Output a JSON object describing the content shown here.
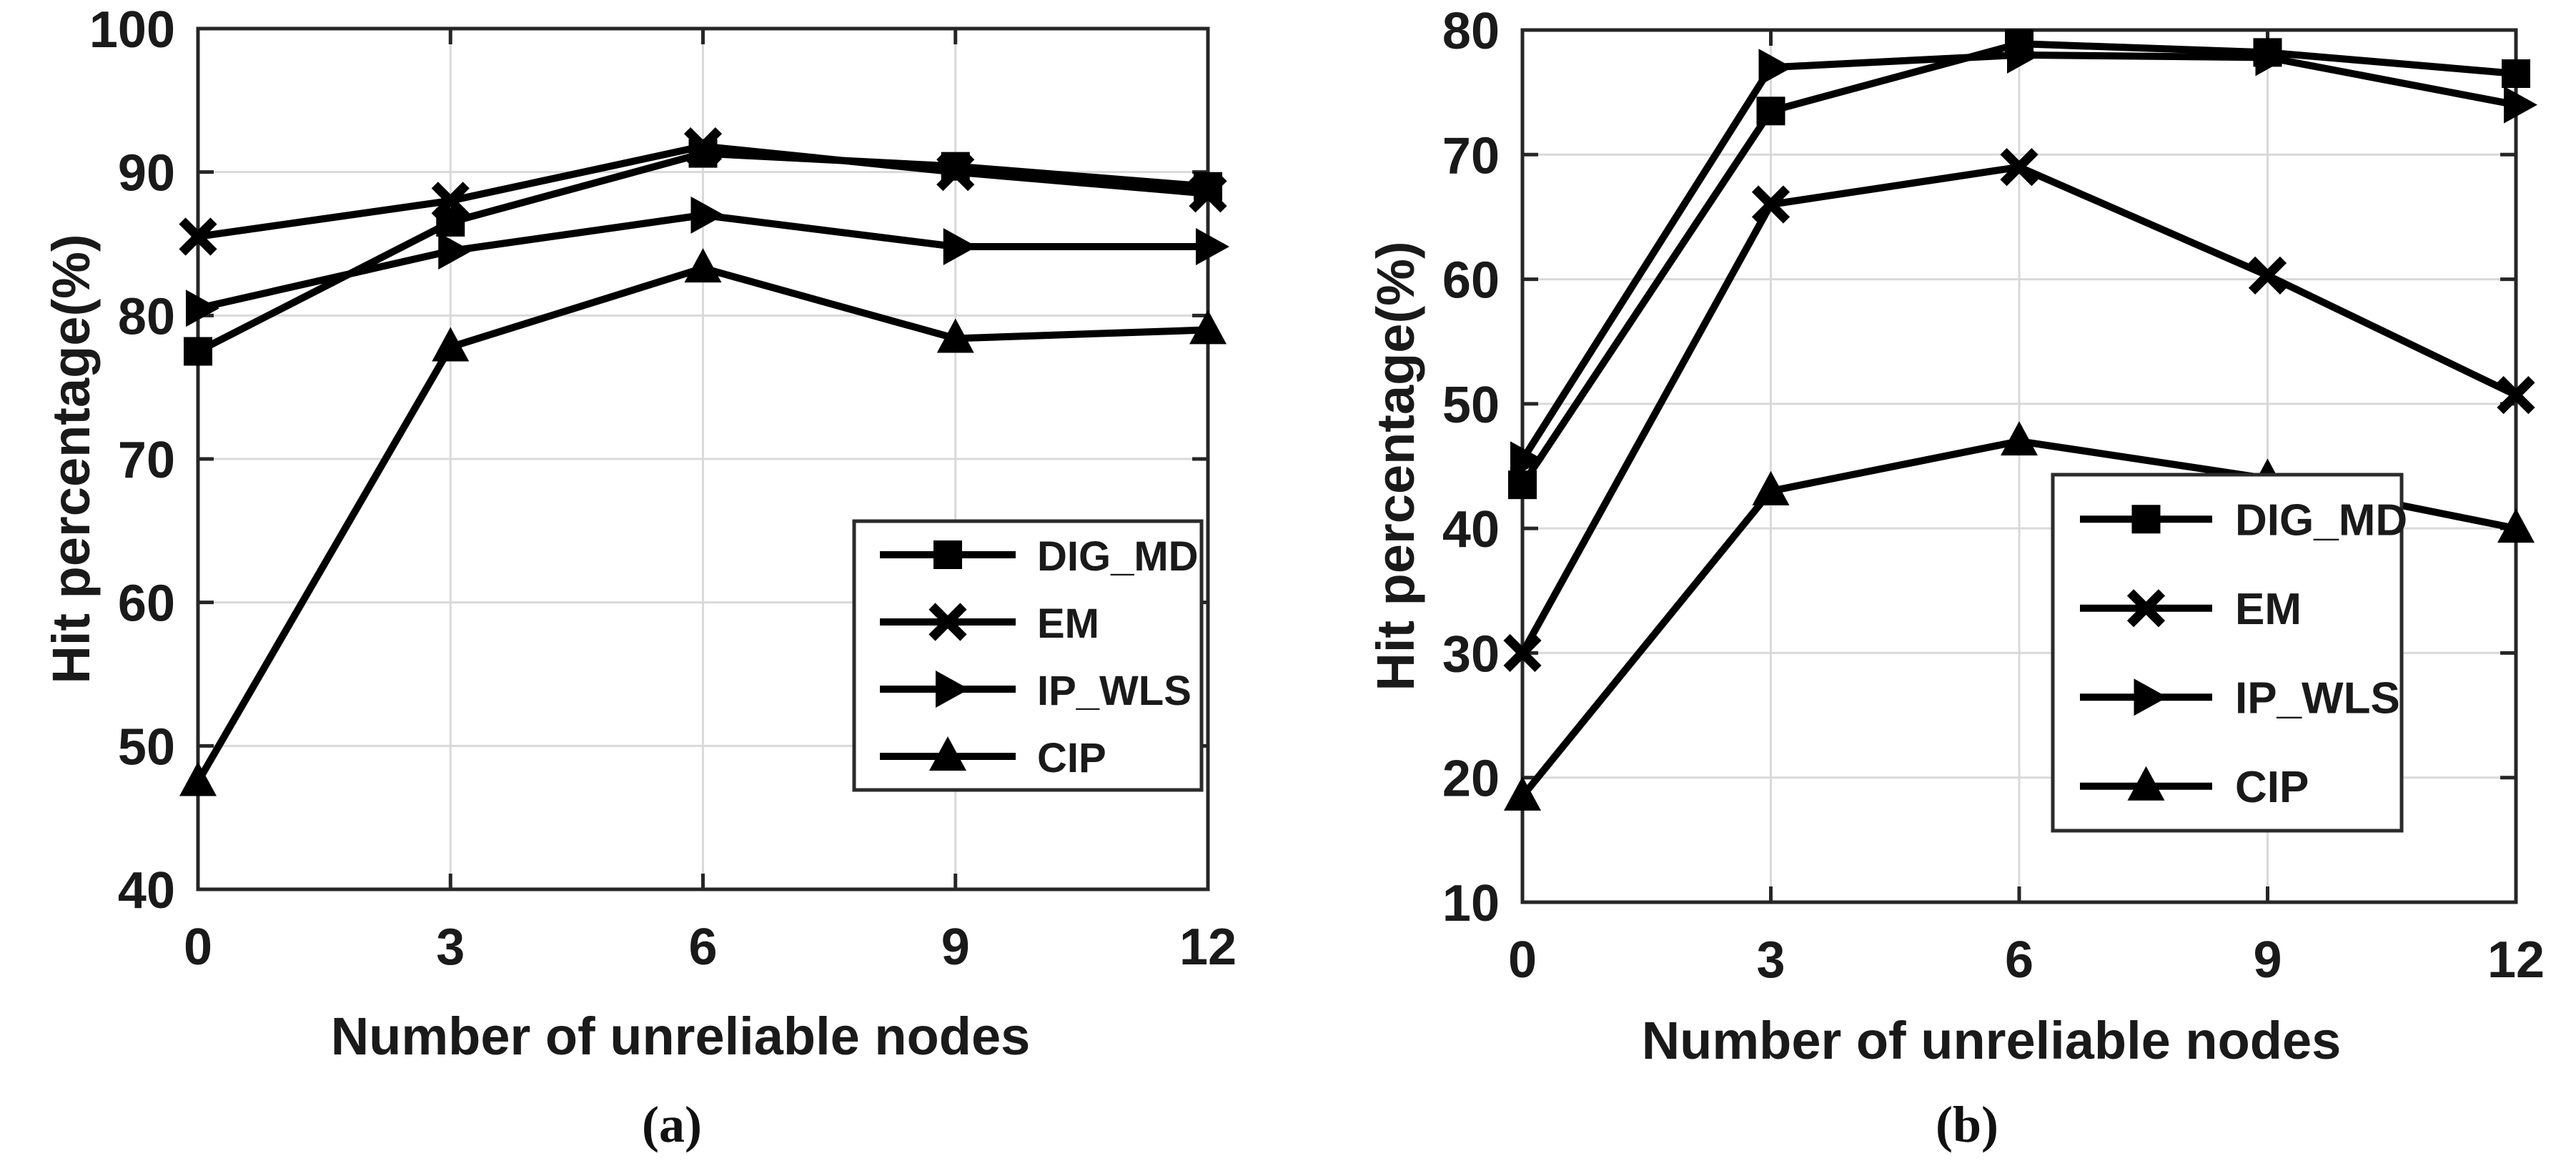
{
  "figure": {
    "background": "#ffffff",
    "line_color": "#000000",
    "axis_color": "#262626",
    "grid_color": "#d9d9d9",
    "text_color": "#1a1a1a"
  },
  "chart_data": [
    {
      "type": "line",
      "caption": "(a)",
      "xlabel": "Number of unreliable nodes",
      "ylabel": "Hit percentage(%)",
      "x": [
        0,
        3,
        6,
        9,
        12
      ],
      "xticks": [
        0,
        3,
        6,
        9,
        12
      ],
      "xlim": [
        0,
        12
      ],
      "ylim": [
        40,
        100
      ],
      "yticks": [
        40,
        50,
        60,
        70,
        80,
        90,
        100
      ],
      "grid": true,
      "legend_position": "inside-center-right",
      "series": [
        {
          "name": "DIG_MD",
          "marker": "square-marker",
          "values": [
            77.5,
            86.5,
            91.3,
            90.4,
            89.0
          ]
        },
        {
          "name": "EM",
          "marker": "x-marker",
          "values": [
            85.5,
            88.0,
            91.8,
            90.0,
            88.5
          ]
        },
        {
          "name": "IP_WLS",
          "marker": "triangle-right-marker",
          "values": [
            80.5,
            84.5,
            87.0,
            84.8,
            84.8
          ]
        },
        {
          "name": "CIP",
          "marker": "triangle-up-marker",
          "values": [
            47.5,
            77.8,
            83.3,
            78.4,
            79.0
          ]
        }
      ]
    },
    {
      "type": "line",
      "caption": "(b)",
      "xlabel": "Number of unreliable nodes",
      "ylabel": "Hit percentage(%)",
      "x": [
        0,
        3,
        6,
        9,
        12
      ],
      "xticks": [
        0,
        3,
        6,
        9,
        12
      ],
      "xlim": [
        0,
        12
      ],
      "ylim": [
        10,
        80
      ],
      "yticks": [
        10,
        20,
        30,
        40,
        50,
        60,
        70,
        80
      ],
      "grid": true,
      "legend_position": "inside-lower-right",
      "series": [
        {
          "name": "DIG_MD",
          "marker": "square-marker",
          "values": [
            43.5,
            73.5,
            78.9,
            78.2,
            76.5
          ]
        },
        {
          "name": "EM",
          "marker": "x-marker",
          "values": [
            30.0,
            66.0,
            69.0,
            60.3,
            50.7
          ]
        },
        {
          "name": "IP_WLS",
          "marker": "triangle-right-marker",
          "values": [
            45.5,
            77.0,
            78.0,
            77.8,
            74.0
          ]
        },
        {
          "name": "CIP",
          "marker": "triangle-up-marker",
          "values": [
            18.5,
            43.0,
            47.0,
            44.0,
            40.0
          ]
        }
      ]
    }
  ]
}
